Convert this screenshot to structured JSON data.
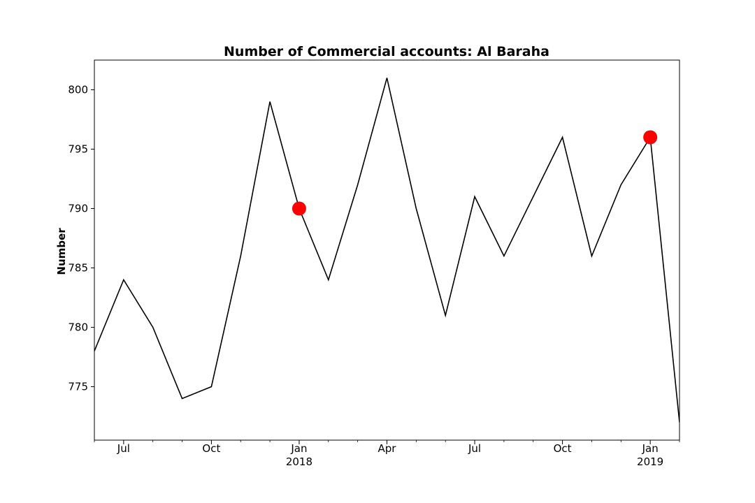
{
  "chart_data": {
    "type": "line",
    "title": "Number of Commercial accounts: Al Baraha",
    "xlabel": "",
    "ylabel": "Number",
    "grid": false,
    "legend": "none",
    "x": [
      "2017-06",
      "2017-07",
      "2017-08",
      "2017-09",
      "2017-10",
      "2017-11",
      "2017-12",
      "2018-01",
      "2018-02",
      "2018-03",
      "2018-04",
      "2018-05",
      "2018-06",
      "2018-07",
      "2018-08",
      "2018-09",
      "2018-10",
      "2018-11",
      "2018-12",
      "2019-01",
      "2019-02"
    ],
    "series": [
      {
        "name": "",
        "color": "#000000",
        "values": [
          778,
          784,
          780,
          774,
          775,
          786,
          799,
          790,
          784,
          792,
          801,
          790,
          781,
          791,
          786,
          791,
          796,
          786,
          792,
          796,
          772
        ]
      }
    ],
    "highlights": [
      {
        "x": "2018-01",
        "y": 790,
        "color": "#ff0000"
      },
      {
        "x": "2019-01",
        "y": 796,
        "color": "#ff0000"
      }
    ],
    "ylim": [
      770.5,
      802.5
    ],
    "xlim": [
      "2017-06",
      "2019-02"
    ],
    "y_ticks": [
      775,
      780,
      785,
      790,
      795,
      800
    ],
    "y_tick_labels": [
      "775",
      "780",
      "785",
      "790",
      "795",
      "800"
    ],
    "x_ticks": [
      {
        "x": "2017-07",
        "label": "Jul",
        "sublabel": ""
      },
      {
        "x": "2017-10",
        "label": "Oct",
        "sublabel": ""
      },
      {
        "x": "2018-01",
        "label": "Jan",
        "sublabel": "2018"
      },
      {
        "x": "2018-04",
        "label": "Apr",
        "sublabel": ""
      },
      {
        "x": "2018-07",
        "label": "Jul",
        "sublabel": ""
      },
      {
        "x": "2018-10",
        "label": "Oct",
        "sublabel": ""
      },
      {
        "x": "2019-01",
        "label": "Jan",
        "sublabel": "2019"
      }
    ]
  }
}
